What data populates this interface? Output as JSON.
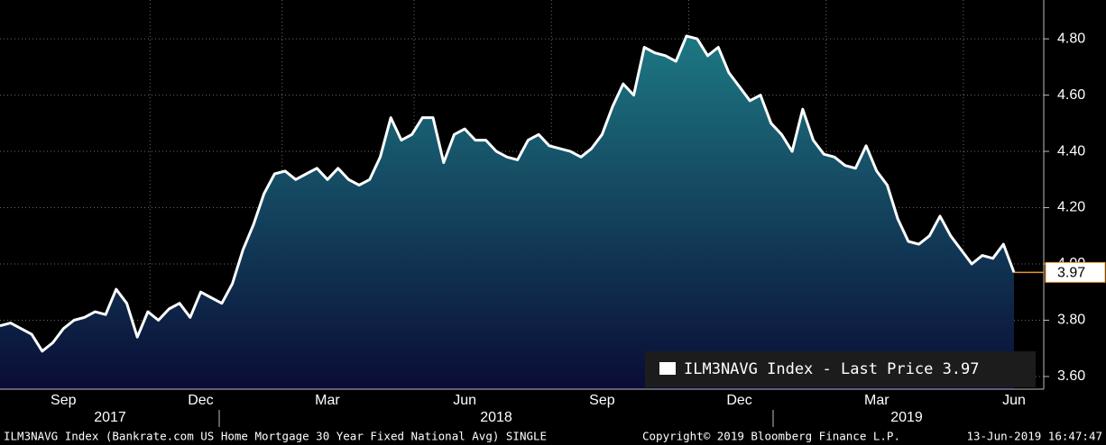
{
  "chart_data": {
    "type": "area",
    "series": [
      {
        "name": "ILM3NAVG Index - Last Price 3.97",
        "color": "#ffffff",
        "values": [
          3.78,
          3.79,
          3.77,
          3.75,
          3.69,
          3.72,
          3.77,
          3.8,
          3.81,
          3.83,
          3.82,
          3.91,
          3.86,
          3.74,
          3.83,
          3.8,
          3.84,
          3.86,
          3.81,
          3.9,
          3.88,
          3.86,
          3.93,
          4.05,
          4.14,
          4.25,
          4.32,
          4.33,
          4.3,
          4.32,
          4.34,
          4.3,
          4.34,
          4.3,
          4.28,
          4.3,
          4.38,
          4.52,
          4.44,
          4.46,
          4.52,
          4.52,
          4.36,
          4.46,
          4.48,
          4.44,
          4.44,
          4.4,
          4.38,
          4.37,
          4.44,
          4.46,
          4.42,
          4.41,
          4.4,
          4.38,
          4.41,
          4.46,
          4.56,
          4.64,
          4.6,
          4.77,
          4.75,
          4.74,
          4.72,
          4.81,
          4.8,
          4.74,
          4.77,
          4.68,
          4.63,
          4.58,
          4.6,
          4.5,
          4.46,
          4.4,
          4.55,
          4.44,
          4.39,
          4.38,
          4.35,
          4.34,
          4.42,
          4.33,
          4.28,
          4.16,
          4.08,
          4.07,
          4.1,
          4.17,
          4.1,
          4.05,
          4.0,
          4.03,
          4.02,
          4.07,
          3.97
        ]
      }
    ],
    "categories": [
      null,
      null,
      null,
      null,
      null,
      null,
      "Sep",
      null,
      null,
      null,
      null,
      null,
      null,
      null,
      null,
      null,
      null,
      null,
      null,
      "Dec",
      null,
      null,
      null,
      null,
      null,
      null,
      null,
      null,
      null,
      null,
      null,
      "Mar",
      null,
      null,
      null,
      null,
      null,
      null,
      null,
      null,
      null,
      null,
      null,
      null,
      "Jun",
      null,
      null,
      null,
      null,
      null,
      null,
      null,
      null,
      null,
      null,
      null,
      null,
      "Sep",
      null,
      null,
      null,
      null,
      null,
      null,
      null,
      null,
      null,
      null,
      null,
      null,
      "Dec",
      null,
      null,
      null,
      null,
      null,
      null,
      null,
      null,
      null,
      null,
      null,
      null,
      "Mar",
      null,
      null,
      null,
      null,
      null,
      null,
      null,
      null,
      null,
      null,
      null,
      null,
      "Jun"
    ],
    "years": [
      "2017",
      "2018",
      "2019"
    ],
    "ylim": [
      3.555,
      4.938
    ],
    "yticks": [
      {
        "value": 3.6,
        "label": "3.60"
      },
      {
        "value": 3.8,
        "label": "3.80"
      },
      {
        "value": 4.0,
        "label": "4.00"
      },
      {
        "value": 4.2,
        "label": "4.20"
      },
      {
        "value": 4.4,
        "label": "4.40"
      },
      {
        "value": 4.6,
        "label": "4.60"
      },
      {
        "value": 4.8,
        "label": "4.80"
      }
    ],
    "grid": true,
    "fill_gradient": [
      "#1d7884",
      "#0a0c36"
    ],
    "last_price_color": "#e8962a",
    "footer": {
      "source": "ILM3NAVG Index (Bankrate.com US Home Mortgage 30 Year Fixed National Avg) SINGLE",
      "copyright": "Copyright© 2019 Bloomberg Finance L.P.",
      "timestamp": "13-Jun-2019 16:47:47"
    }
  }
}
